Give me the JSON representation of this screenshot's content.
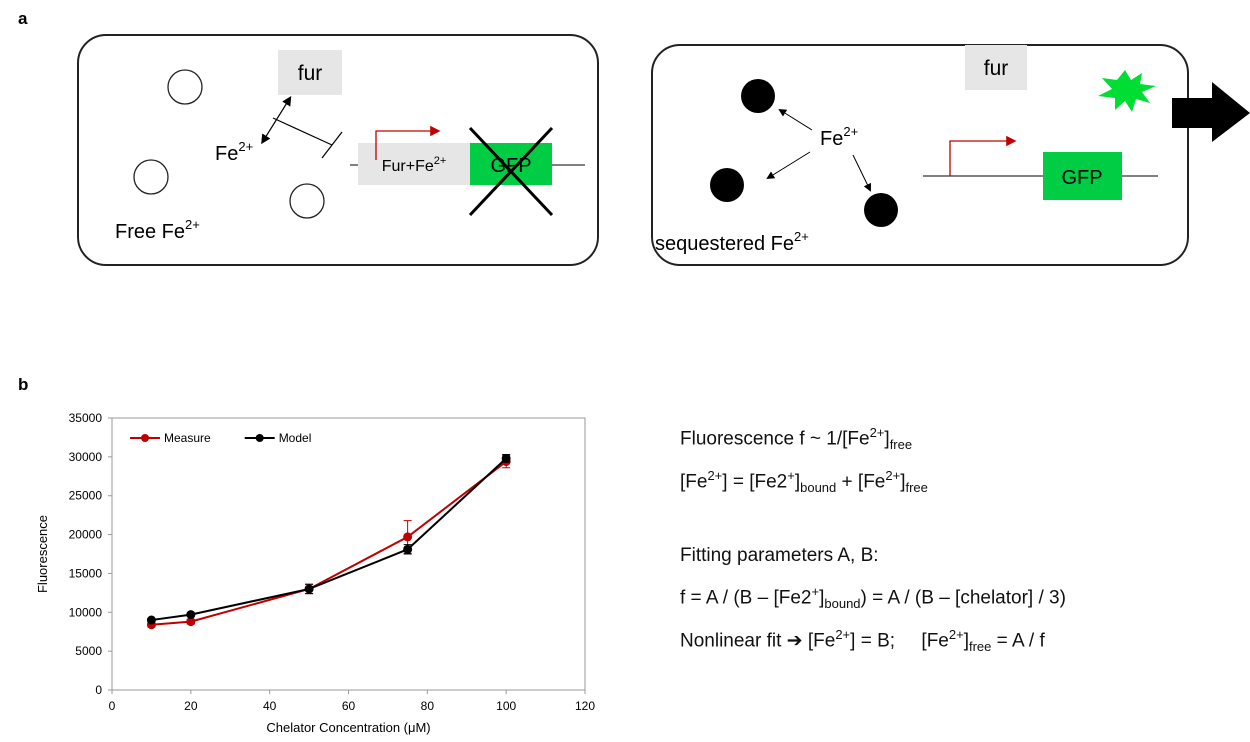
{
  "panel_a": {
    "label": "a",
    "left": {
      "fur": "fur",
      "fe": [
        "Fe",
        "2+"
      ],
      "promoter_box": [
        "Fur+Fe",
        "2+"
      ],
      "gene": "GFP",
      "free": [
        "Free Fe",
        "2+"
      ]
    },
    "right": {
      "fur": "fur",
      "fe": [
        "Fe",
        "2+"
      ],
      "gene": "GFP",
      "sequestered": [
        "sequestered Fe",
        "2+"
      ]
    }
  },
  "panel_b": {
    "label": "b",
    "equations": [
      [
        "Fluorescence f ~ 1/[Fe",
        "2+",
        "]",
        "free"
      ],
      [
        "[Fe",
        "2+",
        "] = [Fe2",
        "+",
        "]",
        "bound",
        " + [Fe",
        "2+",
        "]",
        "free"
      ],
      [
        "Fitting parameters A, B:"
      ],
      [
        "f = A / (B – [Fe2",
        "+",
        "]",
        "bound",
        ") = A / (B – [chelator] / 3)"
      ],
      [
        "Nonlinear fit ➔ [Fe",
        "2+",
        "] = B;     [Fe",
        "2+",
        "]",
        "free",
        " = A / f"
      ]
    ]
  },
  "chart_data": {
    "type": "line",
    "x_label": "Chelator Concentration (μM)",
    "y_label": "Fluorescence",
    "x": [
      10,
      20,
      50,
      75,
      100
    ],
    "series": [
      {
        "name": "Measure",
        "color": "#c00000",
        "values": [
          8400,
          8800,
          13000,
          19700,
          29400
        ],
        "errors": [
          300,
          300,
          600,
          2100,
          800
        ]
      },
      {
        "name": "Model",
        "color": "#000000",
        "values": [
          9000,
          9700,
          13000,
          18100,
          29800
        ],
        "errors": [
          200,
          200,
          600,
          600,
          500
        ]
      }
    ],
    "xlim": [
      0,
      120
    ],
    "xticks": [
      0,
      20,
      40,
      60,
      80,
      100,
      120
    ],
    "ylim": [
      0,
      35000
    ],
    "yticks": [
      0,
      5000,
      10000,
      15000,
      20000,
      25000,
      30000,
      35000
    ],
    "legend": "upper left"
  }
}
